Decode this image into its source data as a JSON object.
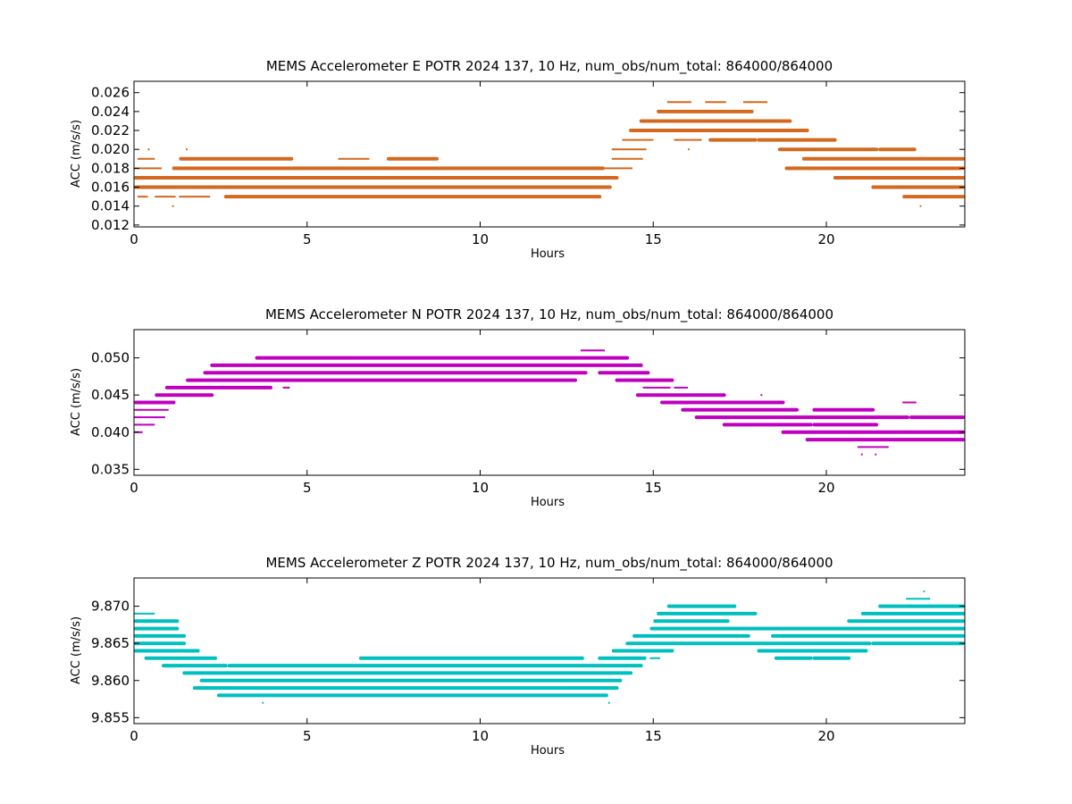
{
  "chart_data": [
    {
      "type": "scatter",
      "title": "MEMS Accelerometer E POTR 2024 137, 10 Hz, num_obs/num_total: 864000/864000",
      "xlabel": "Hours",
      "ylabel": "ACC (m/s/s)",
      "xlim": [
        0,
        24
      ],
      "ylim": [
        0.0118,
        0.0272
      ],
      "xticks": [
        "0",
        "5",
        "10",
        "15",
        "20"
      ],
      "yticks": [
        "0.012",
        "0.014",
        "0.016",
        "0.018",
        "0.020",
        "0.022",
        "0.024",
        "0.026"
      ],
      "color": "#d2691e",
      "grid": false,
      "series": [
        {
          "levels": [
            {
              "y": 0.014,
              "segments": [
                [
                  1.1,
                  1.15
                ],
                [
                  22.7,
                  22.75
                ]
              ]
            },
            {
              "y": 0.015,
              "segments": [
                [
                  0.1,
                  0.4
                ],
                [
                  0.6,
                  1.2
                ],
                [
                  1.3,
                  2.2
                ],
                [
                  2.6,
                  13.5
                ],
                [
                  22.2,
                  24
                ]
              ]
            },
            {
              "y": 0.016,
              "segments": [
                [
                  0,
                  13.8
                ],
                [
                  21.3,
                  24
                ]
              ]
            },
            {
              "y": 0.017,
              "segments": [
                [
                  0,
                  14.0
                ],
                [
                  20.2,
                  24
                ]
              ]
            },
            {
              "y": 0.018,
              "segments": [
                [
                  0,
                  0.8
                ],
                [
                  1.1,
                  13.6
                ],
                [
                  13.6,
                  14.4
                ],
                [
                  18.8,
                  24
                ]
              ]
            },
            {
              "y": 0.019,
              "segments": [
                [
                  0.1,
                  0.6
                ],
                [
                  1.3,
                  4.6
                ],
                [
                  5.9,
                  6.8
                ],
                [
                  7.3,
                  8.8
                ],
                [
                  13.8,
                  14.7
                ],
                [
                  19.3,
                  24
                ]
              ]
            },
            {
              "y": 0.02,
              "segments": [
                [
                  0.4,
                  0.45
                ],
                [
                  1.5,
                  1.55
                ],
                [
                  13.8,
                  14.8
                ],
                [
                  16,
                  16.05
                ],
                [
                  18.6,
                  21.5
                ],
                [
                  21.5,
                  22.6
                ]
              ]
            },
            {
              "y": 0.021,
              "segments": [
                [
                  14.1,
                  15.0
                ],
                [
                  15.6,
                  16.4
                ],
                [
                  16.6,
                  18
                ],
                [
                  18,
                  20.3
                ]
              ]
            },
            {
              "y": 0.022,
              "segments": [
                [
                  14.3,
                  19.5
                ]
              ]
            },
            {
              "y": 0.023,
              "segments": [
                [
                  14.6,
                  19.0
                ]
              ]
            },
            {
              "y": 0.024,
              "segments": [
                [
                  15.1,
                  17.9
                ]
              ]
            },
            {
              "y": 0.025,
              "segments": [
                [
                  15.4,
                  16.1
                ],
                [
                  16.5,
                  17.1
                ],
                [
                  17.6,
                  18.3
                ]
              ]
            }
          ]
        }
      ]
    },
    {
      "type": "scatter",
      "title": "MEMS Accelerometer N POTR 2024 137, 10 Hz, num_obs/num_total: 864000/864000",
      "xlabel": "Hours",
      "ylabel": "ACC (m/s/s)",
      "xlim": [
        0,
        24
      ],
      "ylim": [
        0.0342,
        0.0538
      ],
      "xticks": [
        "0",
        "5",
        "10",
        "15",
        "20"
      ],
      "yticks": [
        "0.035",
        "0.040",
        "0.045",
        "0.050"
      ],
      "color": "#bf00bf",
      "grid": false,
      "series": [
        {
          "levels": [
            {
              "y": 0.037,
              "segments": [
                [
                  21.0,
                  21.05
                ],
                [
                  21.4,
                  21.45
                ]
              ]
            },
            {
              "y": 0.038,
              "segments": [
                [
                  20.9,
                  21.8
                ]
              ]
            },
            {
              "y": 0.039,
              "segments": [
                [
                  19.4,
                  24
                ]
              ]
            },
            {
              "y": 0.04,
              "segments": [
                [
                  0,
                  0.25
                ],
                [
                  18.7,
                  24
                ]
              ]
            },
            {
              "y": 0.041,
              "segments": [
                [
                  0,
                  0.6
                ],
                [
                  17.0,
                  19.6
                ],
                [
                  19.6,
                  21.5
                ]
              ]
            },
            {
              "y": 0.042,
              "segments": [
                [
                  0,
                  0.9
                ],
                [
                  16.2,
                  22.4
                ],
                [
                  22.4,
                  24
                ]
              ]
            },
            {
              "y": 0.043,
              "segments": [
                [
                  0,
                  1.0
                ],
                [
                  15.8,
                  19.2
                ],
                [
                  19.6,
                  21.4
                ]
              ]
            },
            {
              "y": 0.044,
              "segments": [
                [
                  0,
                  1.2
                ],
                [
                  15.2,
                  18.8
                ],
                [
                  22.2,
                  22.6
                ]
              ]
            },
            {
              "y": 0.045,
              "segments": [
                [
                  0.6,
                  2.3
                ],
                [
                  14.5,
                  17.1
                ],
                [
                  18.1,
                  18.15
                ]
              ]
            },
            {
              "y": 0.046,
              "segments": [
                [
                  0.9,
                  4.0
                ],
                [
                  4.3,
                  4.5
                ],
                [
                  14.7,
                  15.5
                ],
                [
                  15.6,
                  16.0
                ]
              ]
            },
            {
              "y": 0.047,
              "segments": [
                [
                  1.5,
                  12.8
                ],
                [
                  13.9,
                  15.6
                ]
              ]
            },
            {
              "y": 0.048,
              "segments": [
                [
                  2.0,
                  13.1
                ],
                [
                  13.4,
                  14.9
                ]
              ]
            },
            {
              "y": 0.049,
              "segments": [
                [
                  2.2,
                  14.7
                ]
              ]
            },
            {
              "y": 0.05,
              "segments": [
                [
                  3.5,
                  14.3
                ]
              ]
            },
            {
              "y": 0.051,
              "segments": [
                [
                  12.9,
                  13.6
                ]
              ]
            }
          ]
        }
      ]
    },
    {
      "type": "scatter",
      "title": "MEMS Accelerometer Z POTR 2024 137, 10 Hz, num_obs/num_total: 864000/864000",
      "xlabel": "Hours",
      "ylabel": "ACC (m/s/s)",
      "xlim": [
        0,
        24
      ],
      "ylim": [
        9.8542,
        9.8738
      ],
      "xticks": [
        "0",
        "5",
        "10",
        "15",
        "20"
      ],
      "yticks": [
        "9.855",
        "9.860",
        "9.865",
        "9.870"
      ],
      "color": "#00bfbf",
      "grid": false,
      "series": [
        {
          "levels": [
            {
              "y": 9.857,
              "segments": [
                [
                  3.7,
                  3.75
                ],
                [
                  13.7,
                  13.75
                ]
              ]
            },
            {
              "y": 9.858,
              "segments": [
                [
                  2.4,
                  13.7
                ]
              ]
            },
            {
              "y": 9.859,
              "segments": [
                [
                  1.7,
                  14.0
                ]
              ]
            },
            {
              "y": 9.86,
              "segments": [
                [
                  1.9,
                  14.1
                ]
              ]
            },
            {
              "y": 9.861,
              "segments": [
                [
                  1.4,
                  14.4
                ]
              ]
            },
            {
              "y": 9.862,
              "segments": [
                [
                  0.8,
                  2.7
                ],
                [
                  2.7,
                  14.7
                ]
              ]
            },
            {
              "y": 9.863,
              "segments": [
                [
                  0.3,
                  2.4
                ],
                [
                  6.5,
                  13.0
                ],
                [
                  18.5,
                  19.6
                ],
                [
                  19.6,
                  20.7
                ],
                [
                  13.4,
                  14.8
                ],
                [
                  14.9,
                  15.2
                ]
              ]
            },
            {
              "y": 9.864,
              "segments": [
                [
                  0,
                  1.9
                ],
                [
                  13.8,
                  15.6
                ],
                [
                  18.0,
                  21.2
                ]
              ]
            },
            {
              "y": 9.865,
              "segments": [
                [
                  0,
                  1.5
                ],
                [
                  14.2,
                  21.3
                ],
                [
                  21.3,
                  24
                ]
              ]
            },
            {
              "y": 9.866,
              "segments": [
                [
                  0,
                  1.5
                ],
                [
                  14.4,
                  17.8
                ],
                [
                  18.4,
                  24
                ]
              ]
            },
            {
              "y": 9.867,
              "segments": [
                [
                  0,
                  1.3
                ],
                [
                  14.9,
                  24
                ]
              ]
            },
            {
              "y": 9.868,
              "segments": [
                [
                  0,
                  1.3
                ],
                [
                  15.0,
                  17.2
                ],
                [
                  20.6,
                  24
                ]
              ]
            },
            {
              "y": 9.869,
              "segments": [
                [
                  0,
                  0.6
                ],
                [
                  15.1,
                  18.0
                ],
                [
                  21.0,
                  24
                ]
              ]
            },
            {
              "y": 9.87,
              "segments": [
                [
                  15.4,
                  17.4
                ],
                [
                  21.5,
                  24
                ]
              ]
            },
            {
              "y": 9.871,
              "segments": [
                [
                  22.3,
                  23.0
                ]
              ]
            },
            {
              "y": 9.872,
              "segments": [
                [
                  22.8,
                  22.85
                ]
              ]
            }
          ]
        }
      ]
    }
  ]
}
